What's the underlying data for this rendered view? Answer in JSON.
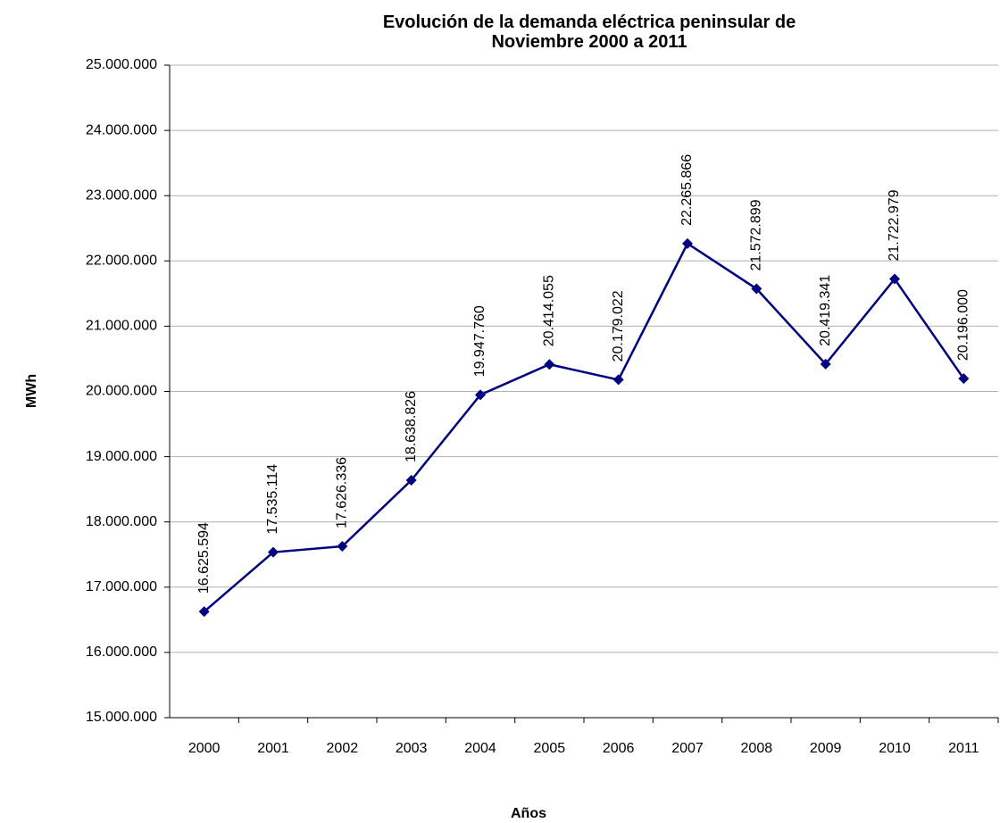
{
  "chart_data": {
    "type": "line",
    "title": "Evolución de la demanda eléctrica peninsular de\nNoviembre 2000 a 2011",
    "x_label": "Años",
    "y_label": "MWh",
    "categories": [
      "2000",
      "2001",
      "2002",
      "2003",
      "2004",
      "2005",
      "2006",
      "2007",
      "2008",
      "2009",
      "2010",
      "2011"
    ],
    "series": [
      {
        "color": "#000080",
        "values": [
          16625594,
          17535114,
          17626336,
          18638826,
          19947760,
          20414055,
          20179022,
          22265866,
          21572899,
          20419341,
          21722979,
          20196000
        ],
        "value_labels": [
          "16.625.594",
          "17.535.114",
          "17.626.336",
          "18.638.826",
          "19.947.760",
          "20.414.055",
          "20.179.022",
          "22.265.866",
          "21.572.899",
          "20.419.341",
          "21.722.979",
          "20.196.000"
        ]
      }
    ],
    "ylim": [
      15000000,
      25000000
    ],
    "yticks": [
      {
        "value": 15000000,
        "label": "15.000.000"
      },
      {
        "value": 16000000,
        "label": "16.000.000"
      },
      {
        "value": 17000000,
        "label": "17.000.000"
      },
      {
        "value": 18000000,
        "label": "18.000.000"
      },
      {
        "value": 19000000,
        "label": "19.000.000"
      },
      {
        "value": 20000000,
        "label": "20.000.000"
      },
      {
        "value": 21000000,
        "label": "21.000.000"
      },
      {
        "value": 22000000,
        "label": "22.000.000"
      },
      {
        "value": 23000000,
        "label": "23.000.000"
      },
      {
        "value": 24000000,
        "label": "24.000.000"
      },
      {
        "value": 25000000,
        "label": "25.000.000"
      }
    ],
    "grid": true
  }
}
